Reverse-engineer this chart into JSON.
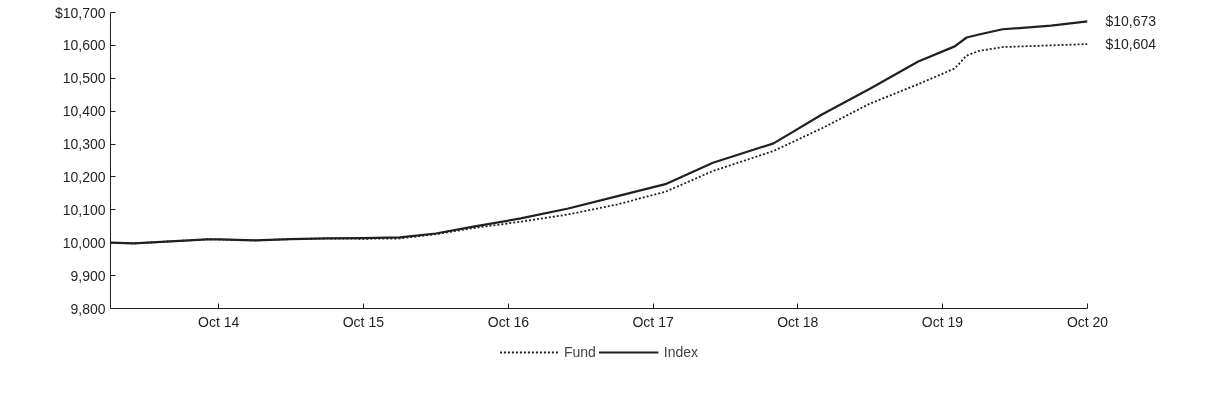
{
  "chart_data": {
    "type": "line",
    "xlim": [
      "2014-01",
      "2020-10"
    ],
    "ylim": [
      9800,
      10700
    ],
    "xticks": [
      {
        "value": "2014-10",
        "label": "Oct 14"
      },
      {
        "value": "2015-10",
        "label": "Oct 15"
      },
      {
        "value": "2016-10",
        "label": "Oct 16"
      },
      {
        "value": "2017-10",
        "label": "Oct 17"
      },
      {
        "value": "2018-10",
        "label": "Oct 18"
      },
      {
        "value": "2019-10",
        "label": "Oct 19"
      },
      {
        "value": "2020-10",
        "label": "Oct 20"
      }
    ],
    "yticks": [
      {
        "value": 9800,
        "label": "9,800"
      },
      {
        "value": 9900,
        "label": "9,900"
      },
      {
        "value": 10000,
        "label": "10,000"
      },
      {
        "value": 10100,
        "label": "10,100"
      },
      {
        "value": 10200,
        "label": "10,200"
      },
      {
        "value": 10300,
        "label": "10,300"
      },
      {
        "value": 10400,
        "label": "10,400"
      },
      {
        "value": 10500,
        "label": "10,500"
      },
      {
        "value": 10600,
        "label": "10,600"
      },
      {
        "value": 10700,
        "label": "$10,700"
      }
    ],
    "grid": false,
    "legend": "bottom",
    "marker": "none",
    "series": [
      {
        "name": "Fund",
        "color": "#231f20",
        "line_style": "dotted",
        "x": [
          "2014-01",
          "2014-03",
          "2014-06",
          "2014-09",
          "2014-10",
          "2015-01",
          "2015-04",
          "2015-07",
          "2015-10",
          "2016-01",
          "2016-04",
          "2016-07",
          "2016-11",
          "2017-03",
          "2017-07",
          "2017-11",
          "2018-03",
          "2018-08",
          "2018-12",
          "2019-04",
          "2019-08",
          "2019-11",
          "2019-12",
          "2020-01",
          "2020-03",
          "2020-07",
          "2020-10"
        ],
        "values": [
          10000,
          9998,
          10004,
          10010,
          10010,
          10007,
          10011,
          10013,
          10012,
          10013,
          10026,
          10044,
          10064,
          10086,
          10116,
          10155,
          10218,
          10279,
          10348,
          10423,
          10482,
          10530,
          10569,
          10583,
          10595,
          10600,
          10604
        ],
        "value_labels": [
          null,
          null,
          null,
          null,
          null,
          null,
          null,
          null,
          null,
          null,
          null,
          null,
          null,
          null,
          null,
          null,
          null,
          null,
          null,
          null,
          null,
          null,
          null,
          null,
          null,
          null,
          "$10,604"
        ]
      },
      {
        "name": "Index",
        "color": "#231f20",
        "line_style": "solid",
        "x": [
          "2014-01",
          "2014-03",
          "2014-06",
          "2014-09",
          "2014-10",
          "2015-01",
          "2015-04",
          "2015-07",
          "2015-10",
          "2016-01",
          "2016-04",
          "2016-07",
          "2016-11",
          "2017-03",
          "2017-07",
          "2017-11",
          "2018-03",
          "2018-08",
          "2018-12",
          "2019-04",
          "2019-08",
          "2019-11",
          "2019-12",
          "2020-01",
          "2020-03",
          "2020-07",
          "2020-10"
        ],
        "values": [
          10000,
          9998,
          10004,
          10010,
          10010,
          10007,
          10011,
          10013,
          10014,
          10016,
          10028,
          10048,
          10074,
          10104,
          10141,
          10178,
          10243,
          10302,
          10390,
          10468,
          10551,
          10597,
          10624,
          10633,
          10649,
          10660,
          10673
        ],
        "value_labels": [
          null,
          null,
          null,
          null,
          null,
          null,
          null,
          null,
          null,
          null,
          null,
          null,
          null,
          null,
          null,
          null,
          null,
          null,
          null,
          null,
          null,
          null,
          null,
          null,
          null,
          null,
          "$10,673"
        ]
      }
    ]
  }
}
